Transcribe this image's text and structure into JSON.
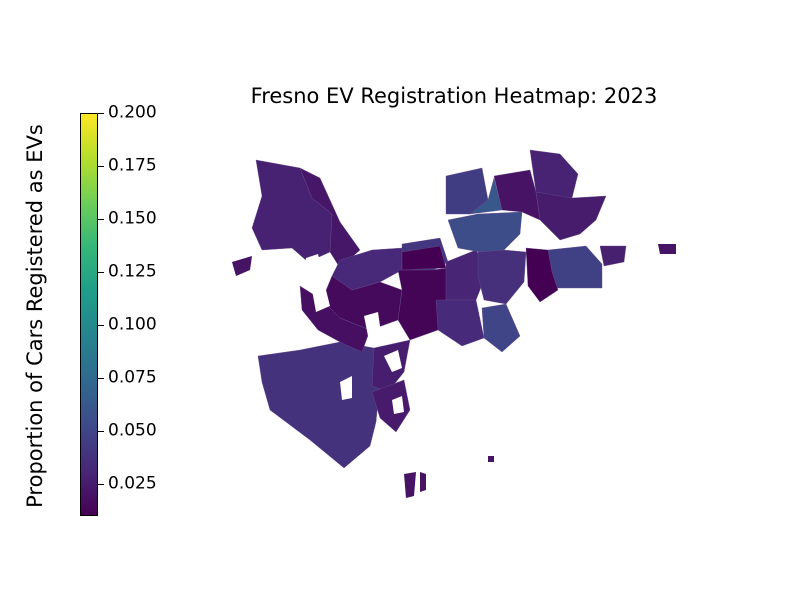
{
  "chart_data": {
    "type": "heatmap",
    "title": "Fresno EV Registration Heatmap: 2023",
    "colorbar": {
      "label": "Proportion of Cars Registered as EVs",
      "range": [
        0.01,
        0.2
      ],
      "ticks": [
        0.2,
        0.175,
        0.15,
        0.125,
        0.1,
        0.075,
        0.05,
        0.025
      ],
      "tick_labels": [
        "0.200",
        "0.175",
        "0.150",
        "0.125",
        "0.100",
        "0.075",
        "0.050",
        "0.025"
      ],
      "colormap": "viridis"
    },
    "regions": [
      {
        "value": 0.028
      },
      {
        "value": 0.022
      },
      {
        "value": 0.032
      },
      {
        "value": 0.015
      },
      {
        "value": 0.041
      },
      {
        "value": 0.012
      },
      {
        "value": 0.03
      },
      {
        "value": 0.045
      },
      {
        "value": 0.055
      },
      {
        "value": 0.062
      },
      {
        "value": 0.047
      },
      {
        "value": 0.036
      },
      {
        "value": 0.02
      },
      {
        "value": 0.029
      },
      {
        "value": 0.025
      },
      {
        "value": 0.01
      },
      {
        "value": 0.05
      },
      {
        "value": 0.033
      },
      {
        "value": 0.038
      },
      {
        "value": 0.018
      },
      {
        "value": 0.026
      },
      {
        "value": 0.024
      },
      {
        "value": 0.01
      },
      {
        "value": 0.027
      }
    ]
  }
}
